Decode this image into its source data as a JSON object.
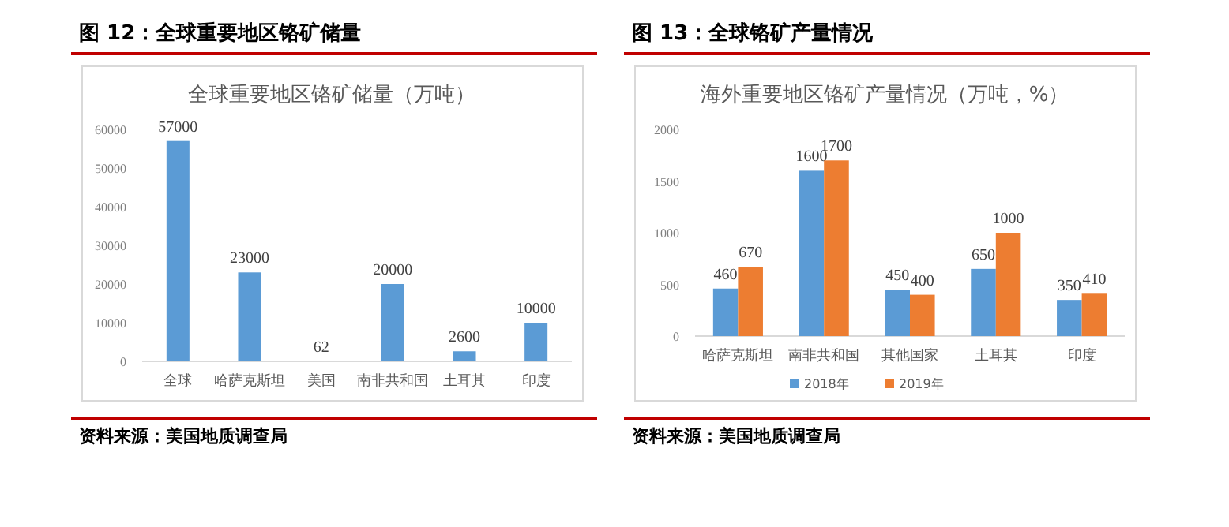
{
  "chart_data": [
    {
      "type": "bar",
      "title": "图 12：全球重要地区铬矿储量",
      "subtitle": "全球重要地区铬矿储量（万吨）",
      "categories": [
        "全球",
        "哈萨克斯坦",
        "美国",
        "南非共和国",
        "土耳其",
        "印度"
      ],
      "series": [
        {
          "color": "#5b9bd5",
          "values": [
            57000,
            23000,
            62,
            20000,
            2600,
            10000
          ]
        }
      ],
      "ylim": [
        0,
        60000
      ],
      "yticks": [
        0,
        10000,
        20000,
        30000,
        40000,
        50000,
        60000
      ],
      "data_labels": true,
      "annotations": [
        "资料来源：美国地质调查局"
      ]
    },
    {
      "type": "bar",
      "title": "图 13：全球铬矿产量情况",
      "subtitle": "海外重要地区铬矿产量情况（万吨，%）",
      "categories": [
        "哈萨克斯坦",
        "南非共和国",
        "其他国家",
        "土耳其",
        "印度"
      ],
      "series": [
        {
          "name": "2018年",
          "color": "#5b9bd5",
          "values": [
            460,
            1600,
            450,
            650,
            350
          ]
        },
        {
          "name": "2019年",
          "color": "#ed7d31",
          "values": [
            670,
            1700,
            400,
            1000,
            410
          ]
        }
      ],
      "ylim": [
        0,
        2000
      ],
      "yticks": [
        0,
        500,
        1000,
        1500,
        2000
      ],
      "data_labels": true,
      "legend": "bottom",
      "annotations": [
        "资料来源：美国地质调查局"
      ]
    }
  ]
}
